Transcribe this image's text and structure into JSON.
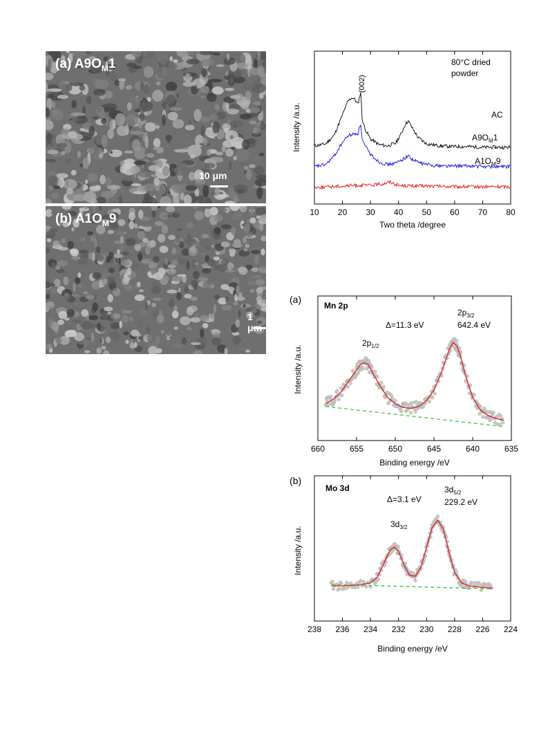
{
  "sem_panels": [
    {
      "label": "(a) A9O",
      "label_sub": "M",
      "label_end": "1",
      "scale": "10 μm"
    },
    {
      "label": "(b) A1O",
      "label_sub": "M",
      "label_end": "9",
      "scale": "1 μm"
    }
  ],
  "chart_data": [
    {
      "type": "line",
      "title": "",
      "annotation_main": "80°C dried",
      "annotation_line2": "powder",
      "peak_label": "(002)",
      "xlabel": "Two theta /degree",
      "ylabel": "Intensity /a.u.",
      "xlim": [
        10,
        80
      ],
      "xticks": [
        10,
        20,
        30,
        40,
        50,
        60,
        70,
        80
      ],
      "series": [
        {
          "name": "AC",
          "color": "#000000",
          "x": [
            10,
            14,
            17,
            20,
            22,
            23.5,
            24.5,
            25.5,
            26.5,
            27,
            28,
            30,
            33,
            36,
            39,
            41,
            42.5,
            43.5,
            45,
            47,
            50,
            55,
            60,
            65,
            70,
            75,
            80
          ],
          "y": [
            0.3,
            0.33,
            0.45,
            0.75,
            0.95,
            1.0,
            0.97,
            0.9,
            1.08,
            0.7,
            0.55,
            0.4,
            0.32,
            0.3,
            0.34,
            0.48,
            0.62,
            0.66,
            0.55,
            0.42,
            0.33,
            0.3,
            0.29,
            0.29,
            0.28,
            0.28,
            0.28
          ]
        },
        {
          "name": "A9O",
          "name_sub": "M",
          "name_end": "1",
          "color": "#1010e0",
          "x": [
            10,
            14,
            17,
            20,
            22,
            24,
            25.5,
            26.5,
            27,
            28,
            30,
            33,
            36,
            39,
            42,
            43.5,
            45,
            48,
            52,
            58,
            65,
            72,
            80
          ],
          "y": [
            0.0,
            0.03,
            0.15,
            0.35,
            0.45,
            0.47,
            0.48,
            0.62,
            0.4,
            0.3,
            0.18,
            0.07,
            0.03,
            0.05,
            0.12,
            0.16,
            0.1,
            0.05,
            0.02,
            0.01,
            0.01,
            0.0,
            0.0
          ]
        },
        {
          "name": "A1O",
          "name_sub": "M",
          "name_end": "9",
          "color": "#e01010",
          "x": [
            10,
            15,
            20,
            25,
            30,
            34,
            37,
            40,
            45,
            50,
            60,
            70,
            80
          ],
          "y": [
            -0.3,
            -0.29,
            -0.28,
            -0.27,
            -0.27,
            -0.25,
            -0.22,
            -0.27,
            -0.28,
            -0.28,
            -0.29,
            -0.29,
            -0.29
          ]
        }
      ]
    },
    {
      "type": "scatter",
      "panel_label": "(a)",
      "title": "Mn 2p",
      "xlabel": "Binding energy /eV",
      "ylabel": "Intensity /a.u.",
      "xlim": [
        660,
        635
      ],
      "xticks": [
        660,
        655,
        650,
        645,
        640,
        635
      ],
      "annotations": {
        "delta": "Δ=11.3 eV",
        "peak1_main": "2p",
        "peak1_sub": "1/2",
        "peak2_main": "2p",
        "peak2_sub": "3/2",
        "peak2_value": "642.4 eV"
      },
      "fit": {
        "x": [
          659,
          658,
          657,
          656,
          655,
          654.5,
          654,
          653.5,
          653,
          652,
          651,
          650,
          649,
          648,
          647,
          646,
          645,
          644,
          643,
          642.5,
          642,
          641.5,
          641,
          640,
          639,
          638,
          637,
          636
        ],
        "y": [
          0.35,
          0.4,
          0.48,
          0.6,
          0.72,
          0.78,
          0.8,
          0.78,
          0.7,
          0.55,
          0.42,
          0.35,
          0.31,
          0.3,
          0.32,
          0.38,
          0.5,
          0.7,
          0.95,
          1.02,
          0.98,
          0.85,
          0.68,
          0.42,
          0.28,
          0.22,
          0.19,
          0.17
        ]
      },
      "baseline": {
        "x": [
          659,
          636
        ],
        "y": [
          0.32,
          0.1
        ]
      }
    },
    {
      "type": "scatter",
      "panel_label": "(b)",
      "title": "Mo 3d",
      "xlabel": "Binding energy /eV",
      "ylabel": "Intensity /a.u.",
      "xlim": [
        238,
        224
      ],
      "xticks": [
        238,
        236,
        234,
        232,
        230,
        228,
        226,
        224
      ],
      "annotations": {
        "delta": "Δ=3.1 eV",
        "peak1_main": "3d",
        "peak1_sub": "3/2",
        "peak2_main": "3d",
        "peak2_sub": "5/2",
        "peak2_value": "229.2 eV"
      },
      "fit": {
        "x": [
          236.8,
          236,
          235,
          234,
          233.5,
          233,
          232.6,
          232.3,
          232,
          231.6,
          231.2,
          230.8,
          230.4,
          230,
          229.6,
          229.2,
          228.8,
          228.4,
          228,
          227.5,
          227,
          226,
          225.3
        ],
        "y": [
          0.1,
          0.1,
          0.11,
          0.14,
          0.22,
          0.42,
          0.58,
          0.62,
          0.56,
          0.38,
          0.24,
          0.23,
          0.35,
          0.62,
          0.88,
          0.98,
          0.86,
          0.55,
          0.28,
          0.14,
          0.1,
          0.08,
          0.07
        ]
      },
      "baseline": {
        "x": [
          236.8,
          225.3
        ],
        "y": [
          0.12,
          0.06
        ]
      }
    }
  ]
}
